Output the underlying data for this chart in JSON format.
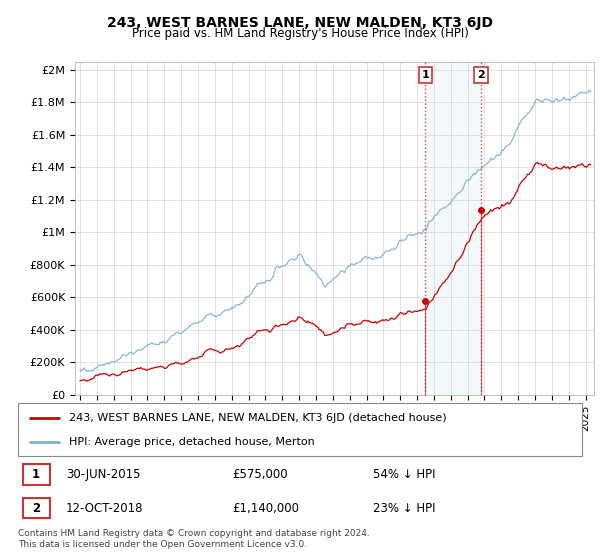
{
  "title": "243, WEST BARNES LANE, NEW MALDEN, KT3 6JD",
  "subtitle": "Price paid vs. HM Land Registry's House Price Index (HPI)",
  "ylabel_ticks": [
    "£0",
    "£200K",
    "£400K",
    "£600K",
    "£800K",
    "£1M",
    "£1.2M",
    "£1.4M",
    "£1.6M",
    "£1.8M",
    "£2M"
  ],
  "ytick_values": [
    0,
    200000,
    400000,
    600000,
    800000,
    1000000,
    1200000,
    1400000,
    1600000,
    1800000,
    2000000
  ],
  "ylim": [
    0,
    2050000
  ],
  "xlim_start": 1994.7,
  "xlim_end": 2025.5,
  "hpi_color": "#7ab0d4",
  "price_color": "#cc0000",
  "sale1_x": 2015.5,
  "sale1_y": 575000,
  "sale2_x": 2018.79,
  "sale2_y": 1140000,
  "shade_x_start": 2015.5,
  "shade_x_end": 2018.79,
  "legend_line1": "243, WEST BARNES LANE, NEW MALDEN, KT3 6JD (detached house)",
  "legend_line2": "HPI: Average price, detached house, Merton",
  "table_row1_num": "1",
  "table_row1_date": "30-JUN-2015",
  "table_row1_price": "£575,000",
  "table_row1_hpi": "54% ↓ HPI",
  "table_row2_num": "2",
  "table_row2_date": "12-OCT-2018",
  "table_row2_price": "£1,140,000",
  "table_row2_hpi": "23% ↓ HPI",
  "footnote": "Contains HM Land Registry data © Crown copyright and database right 2024.\nThis data is licensed under the Open Government Licence v3.0.",
  "grid_color": "#cccccc"
}
